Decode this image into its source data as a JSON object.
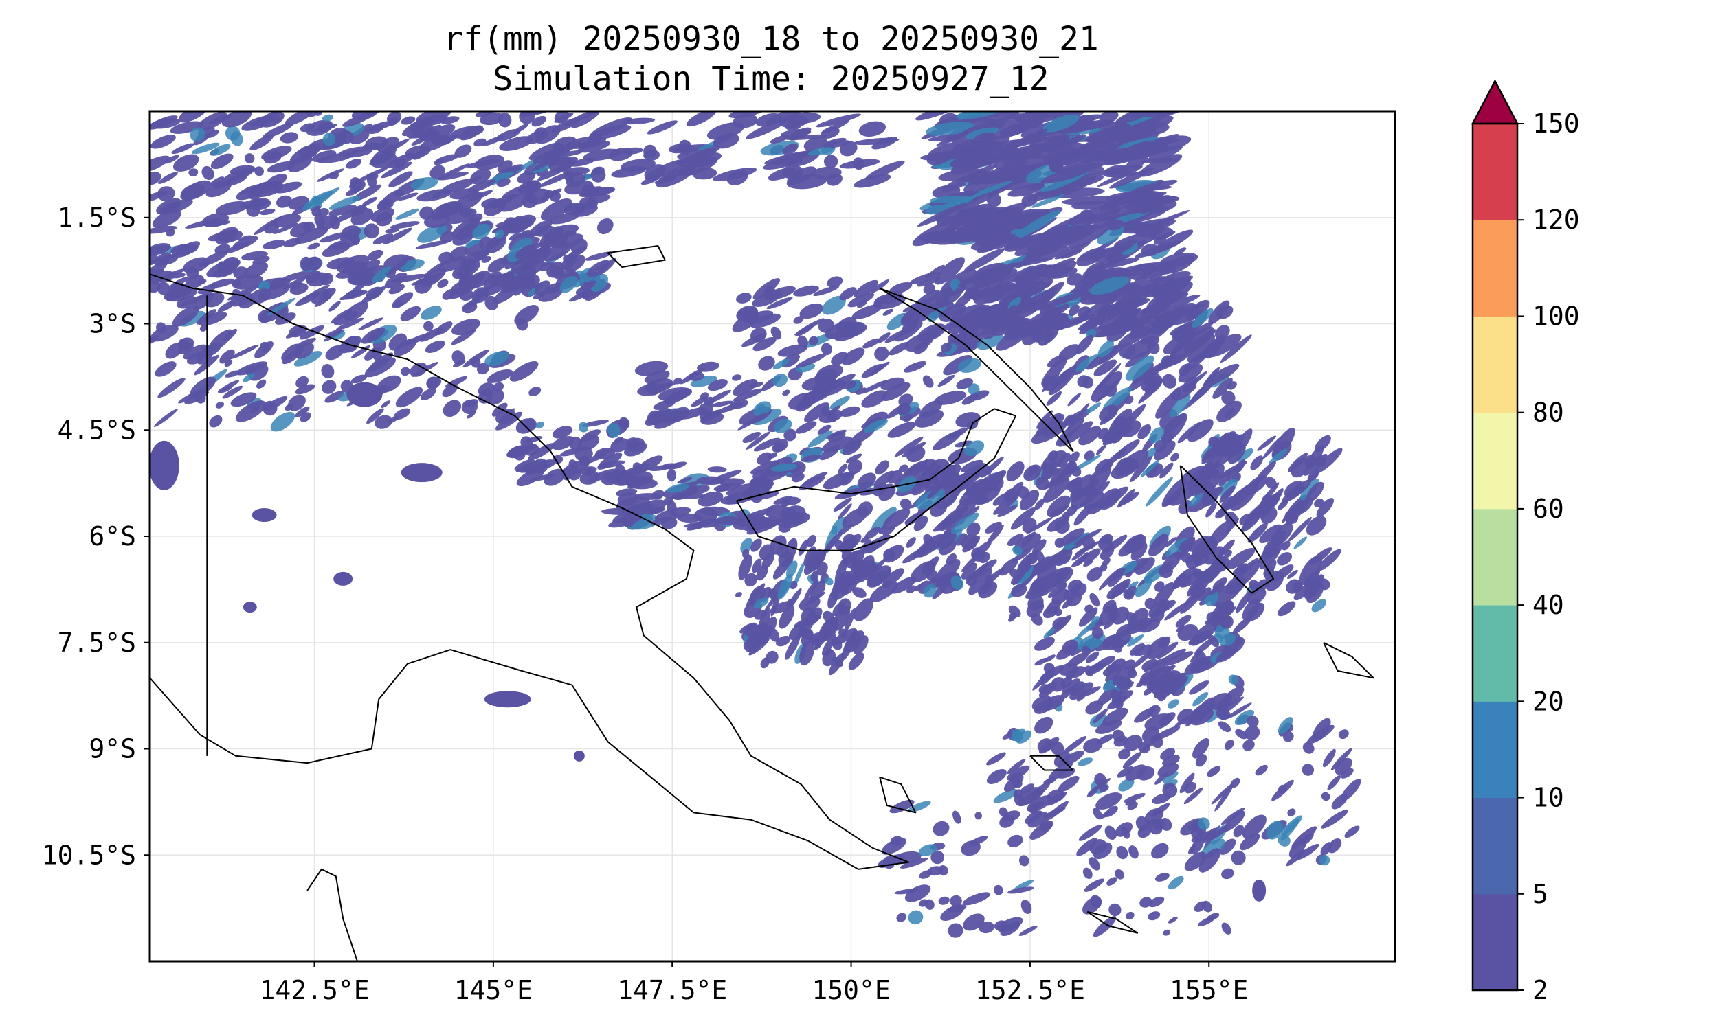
{
  "title": {
    "line1": "rf(mm) 20250930_18 to 20250930_21",
    "line2": "Simulation Time: 20250927_12"
  },
  "map": {
    "type": "filled-contour-map",
    "variable": "rf(mm)",
    "extent": {
      "lon": [
        140.2,
        157.6
      ],
      "lat": [
        -12.0,
        0.0
      ]
    },
    "lat_ticks": [
      {
        "value": -1.5,
        "label": "1.5°S"
      },
      {
        "value": -3.0,
        "label": "3°S"
      },
      {
        "value": -4.5,
        "label": "4.5°S"
      },
      {
        "value": -6.0,
        "label": "6°S"
      },
      {
        "value": -7.5,
        "label": "7.5°S"
      },
      {
        "value": -9.0,
        "label": "9°S"
      },
      {
        "value": -10.5,
        "label": "10.5°S"
      }
    ],
    "lon_ticks": [
      {
        "value": 142.5,
        "label": "142.5°E"
      },
      {
        "value": 145.0,
        "label": "145°E"
      },
      {
        "value": 147.5,
        "label": "147.5°E"
      },
      {
        "value": 150.0,
        "label": "150°E"
      },
      {
        "value": 152.5,
        "label": "152.5°E"
      },
      {
        "value": 155.0,
        "label": "155°E"
      }
    ],
    "grid": true,
    "coastline_color": "#000000",
    "precip_fill": "#5a53a3",
    "precip_edge": "#4b5fae",
    "precip_high": "#3a84b5"
  },
  "colorbar": {
    "levels": [
      "2",
      "5",
      "10",
      "20",
      "40",
      "60",
      "80",
      "100",
      "120",
      "150"
    ],
    "colors": [
      "#5a52a3",
      "#4b67ae",
      "#3a82bb",
      "#62bba9",
      "#b8df9f",
      "#f2f6aa",
      "#fcdf89",
      "#f99d59",
      "#d6404e"
    ],
    "extend_color": "#9e0142",
    "extend": "max"
  }
}
